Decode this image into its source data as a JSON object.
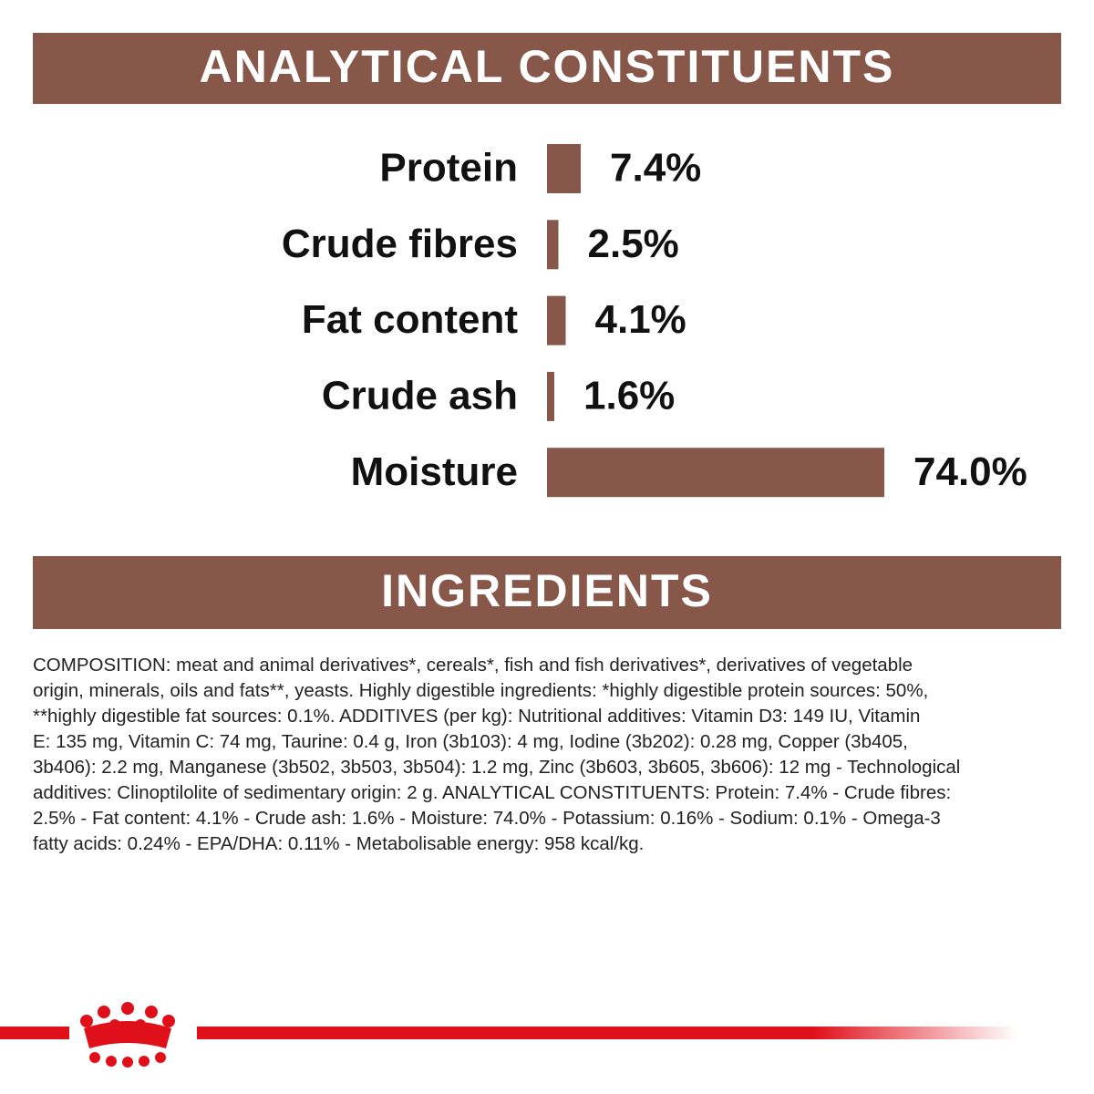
{
  "chart_data": {
    "type": "bar",
    "title": "ANALYTICAL CONSTITUENTS",
    "categories": [
      "Protein",
      "Crude fibres",
      "Fat content",
      "Crude ash",
      "Moisture"
    ],
    "values": [
      7.4,
      2.5,
      4.1,
      1.6,
      74
    ],
    "value_labels": [
      "7.4%",
      "2.5%",
      "4.1%",
      "1.6%",
      "74.0%"
    ],
    "color": "#87574a"
  },
  "ingredients": {
    "title": "INGREDIENTS",
    "lines": [
      "COMPOSITION: meat and animal derivatives*, cereals*, fish and fish derivatives*, derivatives of vegetable",
      "origin, minerals, oils and fats**, yeasts. Highly digestible ingredients: *highly digestible protein sources: 50%,",
      "**highly digestible fat sources: 0.1%. ADDITIVES (per kg): Nutritional additives: Vitamin D3: 149 IU, Vitamin",
      "E: 135 mg, Vitamin C: 74 mg, Taurine: 0.4 g, Iron (3b103): 4 mg, Iodine (3b202): 0.28 mg, Copper (3b405,",
      "3b406): 2.2 mg, Manganese (3b502, 3b503, 3b504): 1.2 mg, Zinc (3b603, 3b605, 3b606): 12 mg - Technological",
      "additives: Clinoptilolite of sedimentary origin: 2 g. ANALYTICAL CONSTITUENTS: Protein: 7.4% - Crude fibres:",
      "2.5% - Fat content: 4.1% - Crude ash: 1.6% - Moisture: 74.0% - Potassium: 0.16% - Sodium: 0.1% - Omega-3",
      "fatty acids: 0.24% - EPA/DHA: 0.11% - Metabolisable energy: 958 kcal/kg."
    ]
  }
}
